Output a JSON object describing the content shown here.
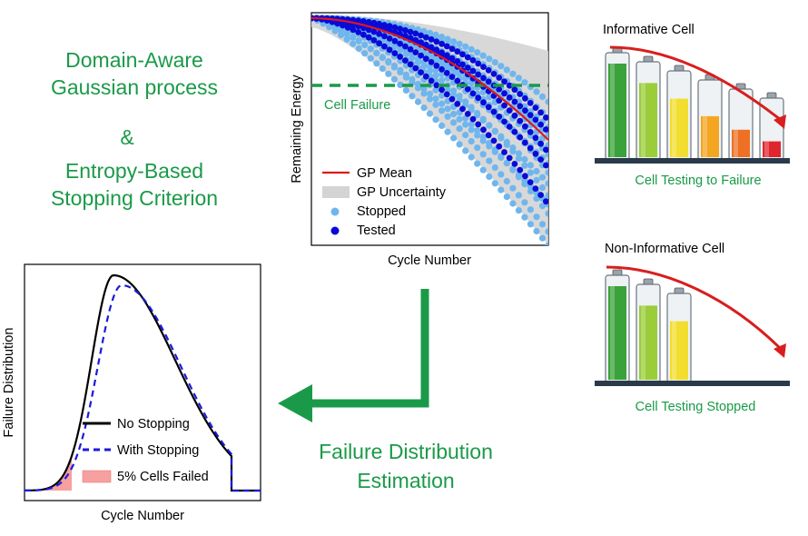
{
  "title": {
    "line1": "Domain-Aware",
    "line2": "Gaussian process",
    "amp": "&",
    "line3": "Entropy-Based",
    "line4": "Stopping Criterion"
  },
  "top_chart": {
    "ylabel": "Remaining Energy",
    "xlabel": "Cycle Number",
    "threshold_label": "Cell Failure",
    "legend": {
      "gp_mean": "GP Mean",
      "gp_uncertainty": "GP Uncertainty",
      "stopped": "Stopped",
      "tested": "Tested"
    }
  },
  "bottom_chart": {
    "ylabel": "Failure Distribution",
    "xlabel": "Cycle Number",
    "legend": {
      "no_stopping": "No Stopping",
      "with_stopping": "With Stopping",
      "failed": "5% Cells Failed"
    }
  },
  "informative": {
    "title": "Informative Cell",
    "caption": "Cell Testing to Failure",
    "levels": [
      0.92,
      0.8,
      0.7,
      0.55,
      0.42,
      0.28
    ]
  },
  "non_informative": {
    "title": "Non-Informative Cell",
    "caption": "Cell Testing Stopped",
    "levels": [
      0.92,
      0.8,
      0.7
    ]
  },
  "flow": {
    "label_line1": "Failure Distribution",
    "label_line2": "Estimation"
  },
  "colors": {
    "green_text": "#1a9a48",
    "flow_arrow": "#1a9a48",
    "gp_mean": "#e0161a",
    "uncertainty": "#d4d4d4",
    "stopped": "#6fb6ee",
    "tested": "#0a0ad8",
    "threshold": "#1a9a48",
    "battery_colors": [
      "#3aa23a",
      "#9bcd3a",
      "#f2de2e",
      "#f4a620",
      "#ee7024",
      "#e0262c"
    ],
    "failed_fill": "#f6a0a0",
    "decline_arrow": "#d81e1e"
  }
}
